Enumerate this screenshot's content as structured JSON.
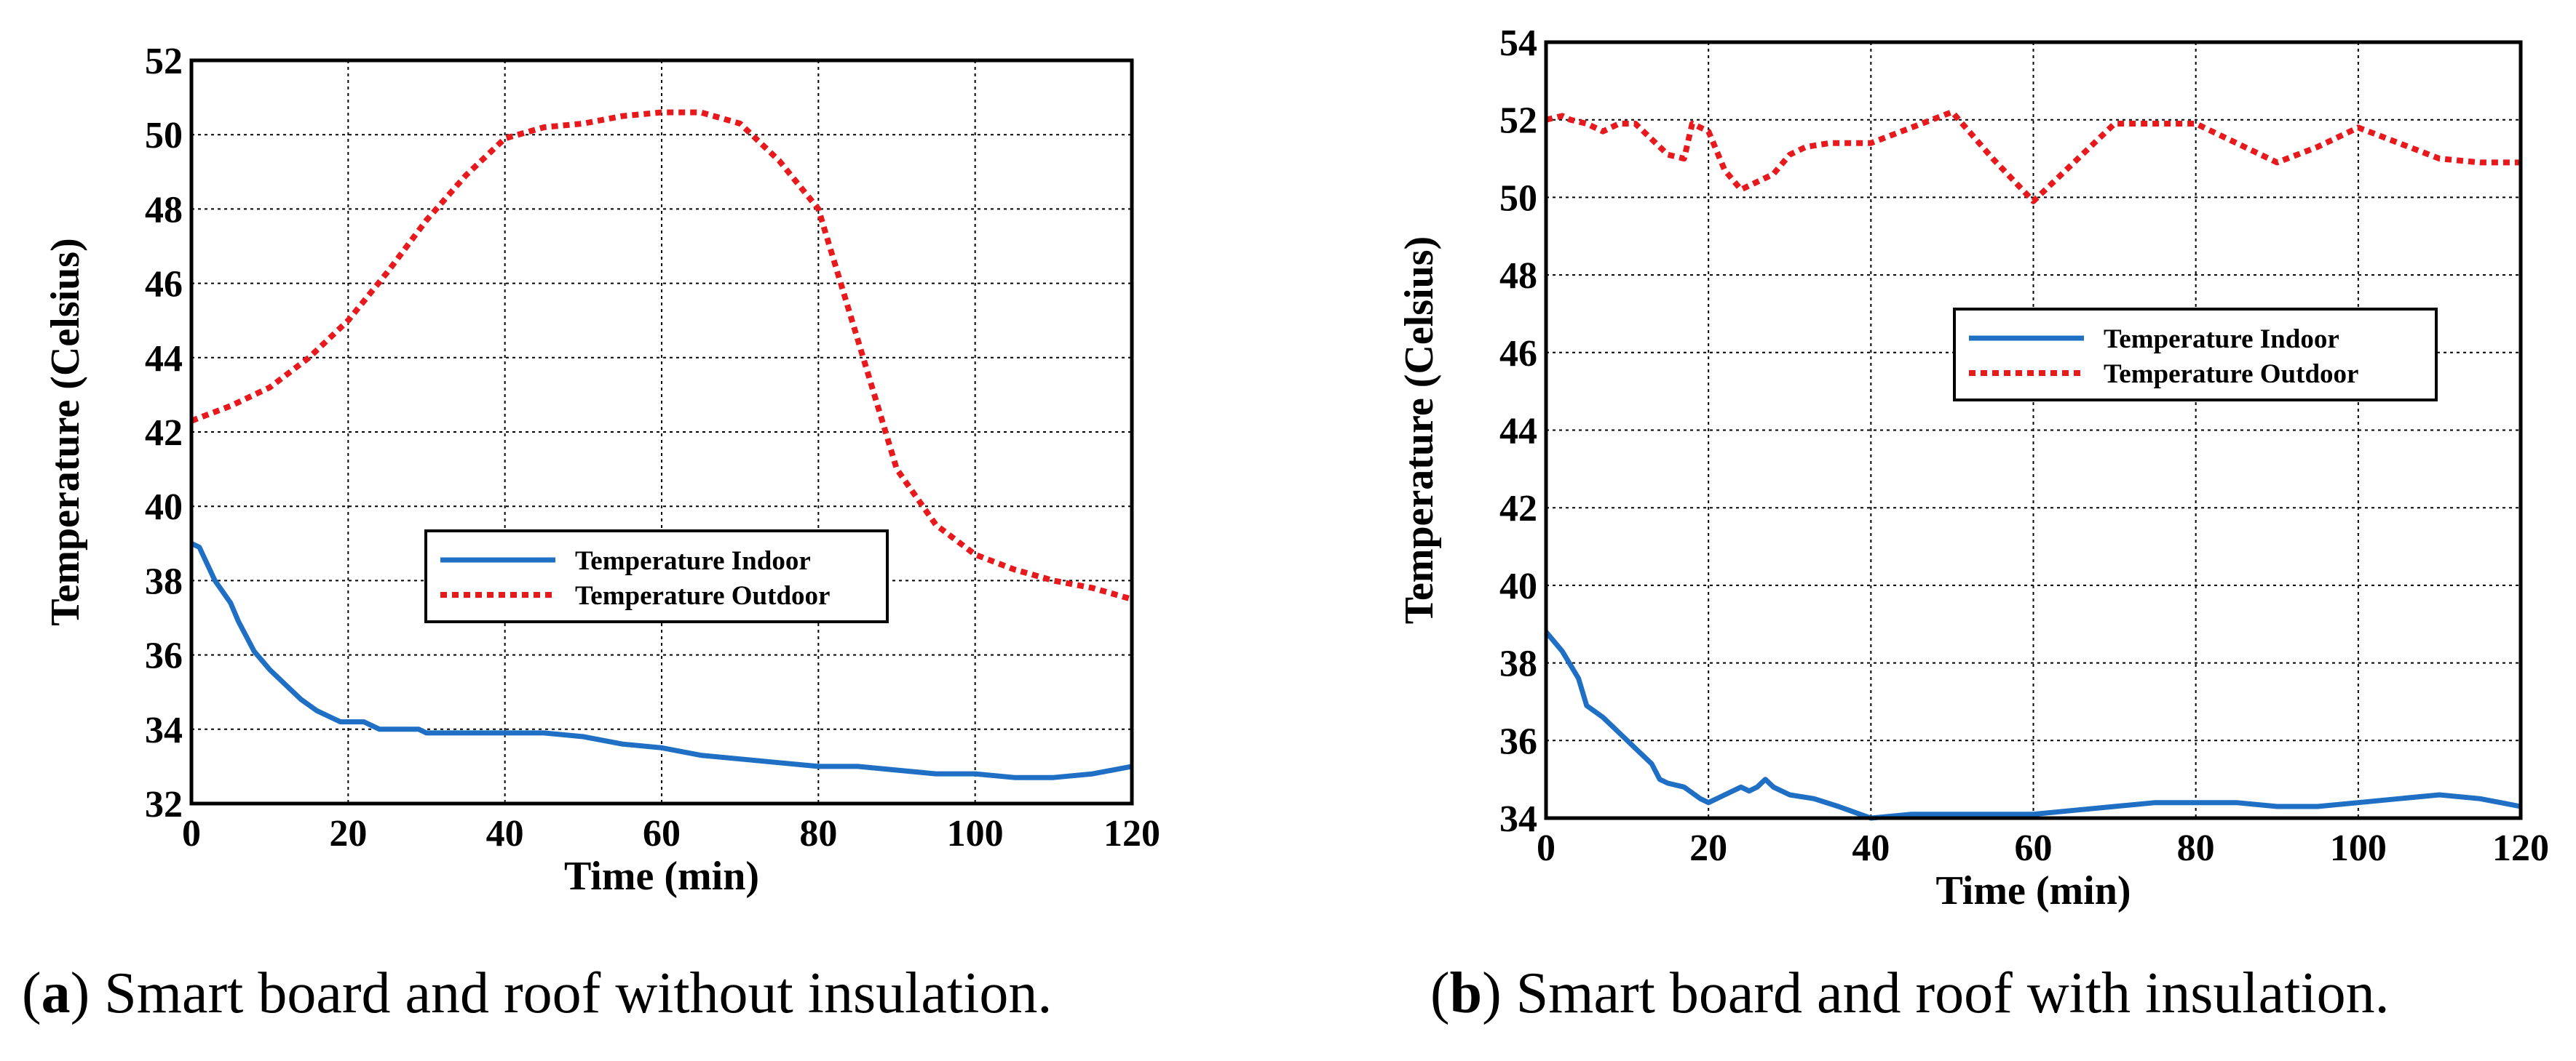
{
  "chart_data": [
    {
      "type": "line",
      "caption_label": "a",
      "caption_text": "Smart board and roof without insulation.",
      "xlabel": "Time (min)",
      "ylabel": "Temperature (Celsius)",
      "xlim": [
        0,
        120
      ],
      "ylim": [
        32,
        52
      ],
      "xticks": [
        0,
        20,
        40,
        60,
        80,
        100,
        120
      ],
      "yticks": [
        32,
        34,
        36,
        38,
        40,
        42,
        44,
        46,
        48,
        50,
        52
      ],
      "grid": true,
      "legend_position": "center-right",
      "series": [
        {
          "name": "Temperature Indoor",
          "color": "#1f6fc4",
          "style": "solid",
          "x": [
            0,
            1,
            3,
            5,
            6,
            8,
            10,
            12,
            14,
            16,
            18,
            19,
            20,
            22,
            23,
            24,
            25,
            26,
            28,
            29,
            30,
            35,
            40,
            45,
            50,
            55,
            60,
            65,
            70,
            75,
            80,
            85,
            90,
            95,
            100,
            105,
            110,
            115,
            120
          ],
          "y": [
            39.0,
            38.9,
            38.0,
            37.4,
            36.9,
            36.1,
            35.6,
            35.2,
            34.8,
            34.5,
            34.3,
            34.2,
            34.2,
            34.2,
            34.1,
            34.0,
            34.0,
            34.0,
            34.0,
            34.0,
            33.9,
            33.9,
            33.9,
            33.9,
            33.8,
            33.6,
            33.5,
            33.3,
            33.2,
            33.1,
            33.0,
            33.0,
            32.9,
            32.8,
            32.8,
            32.7,
            32.7,
            32.8,
            33.0
          ]
        },
        {
          "name": "Temperature Outdoor",
          "color": "#e8191c",
          "style": "dotted",
          "x": [
            0,
            5,
            10,
            15,
            20,
            25,
            30,
            35,
            40,
            45,
            50,
            55,
            60,
            65,
            70,
            75,
            80,
            85,
            90,
            95,
            100,
            105,
            110,
            115,
            120
          ],
          "y": [
            42.3,
            42.7,
            43.2,
            44.0,
            45.0,
            46.3,
            47.7,
            48.9,
            49.9,
            50.2,
            50.3,
            50.5,
            50.6,
            50.6,
            50.3,
            49.3,
            48.0,
            44.5,
            41.0,
            39.5,
            38.7,
            38.3,
            38.0,
            37.8,
            37.5
          ]
        }
      ]
    },
    {
      "type": "line",
      "caption_label": "b",
      "caption_text": "Smart board and roof with insulation.",
      "xlabel": "Time (min)",
      "ylabel": "Temperature (Celsius)",
      "xlim": [
        0,
        120
      ],
      "ylim": [
        34,
        54
      ],
      "xticks": [
        0,
        20,
        40,
        60,
        80,
        100,
        120
      ],
      "yticks": [
        34,
        36,
        38,
        40,
        42,
        44,
        46,
        48,
        50,
        52,
        54
      ],
      "grid": true,
      "legend_position": "upper-center-right",
      "series": [
        {
          "name": "Temperature Indoor",
          "color": "#1f6fc4",
          "style": "solid",
          "x": [
            0,
            2,
            4,
            5,
            7,
            9,
            11,
            13,
            14,
            15,
            17,
            19,
            20,
            22,
            24,
            25,
            26,
            27,
            28,
            30,
            33,
            36,
            40,
            45,
            50,
            55,
            60,
            65,
            70,
            75,
            80,
            85,
            90,
            95,
            100,
            105,
            110,
            115,
            120
          ],
          "y": [
            38.8,
            38.3,
            37.6,
            36.9,
            36.6,
            36.2,
            35.8,
            35.4,
            35.0,
            34.9,
            34.8,
            34.5,
            34.4,
            34.6,
            34.8,
            34.7,
            34.8,
            35.0,
            34.8,
            34.6,
            34.5,
            34.3,
            34.0,
            34.1,
            34.1,
            34.1,
            34.1,
            34.2,
            34.3,
            34.4,
            34.4,
            34.4,
            34.3,
            34.3,
            34.4,
            34.5,
            34.6,
            34.5,
            34.3
          ]
        },
        {
          "name": "Temperature Outdoor",
          "color": "#e8191c",
          "style": "dotted",
          "x": [
            0,
            2,
            3,
            5,
            7,
            9,
            11,
            13,
            15,
            17,
            18,
            20,
            22,
            24,
            26,
            28,
            30,
            32,
            35,
            40,
            45,
            50,
            55,
            60,
            65,
            70,
            75,
            80,
            85,
            90,
            95,
            100,
            105,
            110,
            115,
            120
          ],
          "y": [
            52.0,
            52.1,
            52.0,
            51.9,
            51.7,
            51.9,
            51.9,
            51.5,
            51.1,
            51.0,
            51.9,
            51.7,
            50.7,
            50.2,
            50.4,
            50.6,
            51.1,
            51.3,
            51.4,
            51.4,
            51.8,
            52.2,
            51.0,
            49.9,
            50.9,
            51.9,
            51.9,
            51.9,
            51.4,
            50.9,
            51.3,
            51.8,
            51.4,
            51.0,
            50.9,
            50.9
          ]
        }
      ]
    }
  ]
}
